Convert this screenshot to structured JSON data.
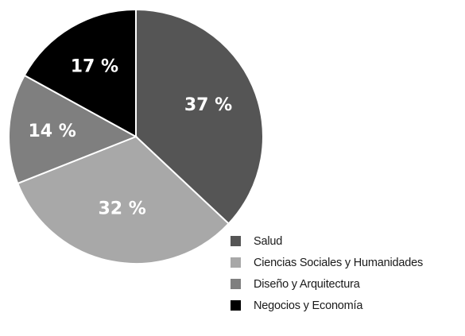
{
  "chart_data": {
    "type": "pie",
    "slices": [
      {
        "label": "Salud",
        "value": 37,
        "display": "37 %",
        "color": "#555555"
      },
      {
        "label": "Ciencias Sociales y Humanidades",
        "value": 32,
        "display": "32 %",
        "color": "#a8a8a8"
      },
      {
        "label": "Diseño y Arquitectura",
        "value": 14,
        "display": "14 %",
        "color": "#7f7f7f"
      },
      {
        "label": "Negocios y Economía",
        "value": 17,
        "display": "17 %",
        "color": "#000000"
      }
    ],
    "title": "",
    "legend_position": "bottom-right",
    "slice_border_color": "#ffffff"
  }
}
